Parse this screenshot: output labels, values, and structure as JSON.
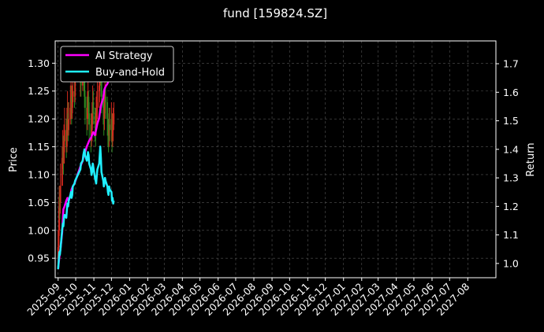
{
  "chart_data": {
    "type": "line",
    "title": "fund [159824.SZ]",
    "ylabel_left": "Price",
    "ylabel_right": "Return",
    "legend_position": "top-left",
    "grid": true,
    "background": "#000000",
    "candle_up_color": "#d42a1e",
    "candle_down_color": "#2e8b20",
    "x_ticks": [
      "2025-09",
      "2025-10",
      "2025-11",
      "2025-12",
      "2026-01",
      "2026-02",
      "2026-03",
      "2026-04",
      "2026-05",
      "2026-06",
      "2026-07",
      "2026-08",
      "2026-09",
      "2026-10",
      "2026-11",
      "2026-12",
      "2027-01",
      "2027-02",
      "2027-03",
      "2027-04",
      "2027-05",
      "2027-06",
      "2027-07",
      "2027-08"
    ],
    "xlim": [
      "2025-08-27",
      "2027-09-18"
    ],
    "y_left_ticks": [
      "0.95",
      "1.00",
      "1.05",
      "1.10",
      "1.15",
      "1.20",
      "1.25",
      "1.30"
    ],
    "y_left_lim": [
      0.915,
      1.34
    ],
    "y_right_ticks": [
      "1.0",
      "1.1",
      "1.2",
      "1.3",
      "1.4",
      "1.5",
      "1.6",
      "1.7"
    ],
    "y_right_lim": [
      0.95,
      1.78
    ],
    "series": [
      {
        "name": "AI Strategy",
        "color": "#ff00ff",
        "axis": "right",
        "x": [
          "2025-09-01",
          "2025-09-03",
          "2025-09-05",
          "2025-09-08",
          "2025-09-10",
          "2025-09-12",
          "2025-09-15",
          "2025-09-17",
          "2025-09-19",
          "2025-09-22",
          "2025-09-24",
          "2025-09-26",
          "2025-09-29",
          "2025-10-09",
          "2025-10-13",
          "2025-10-15",
          "2025-10-17",
          "2025-10-20",
          "2025-10-22",
          "2025-10-24",
          "2025-10-27",
          "2025-10-29",
          "2025-10-31",
          "2025-11-03",
          "2025-11-05",
          "2025-11-07",
          "2025-11-10",
          "2025-11-12",
          "2025-11-14",
          "2025-11-17",
          "2025-11-19",
          "2025-11-21",
          "2025-11-24",
          "2025-11-26",
          "2025-11-28",
          "2025-12-01",
          "2025-12-03"
        ],
        "values": [
          0.98,
          1.02,
          1.05,
          1.11,
          1.19,
          1.2,
          1.22,
          1.23,
          1.22,
          1.24,
          1.26,
          1.27,
          1.28,
          1.34,
          1.36,
          1.38,
          1.39,
          1.41,
          1.42,
          1.43,
          1.44,
          1.45,
          1.46,
          1.45,
          1.47,
          1.49,
          1.51,
          1.54,
          1.56,
          1.58,
          1.61,
          1.62,
          1.63,
          1.64,
          1.65,
          1.66,
          1.67
        ]
      },
      {
        "name": "Buy-and-Hold",
        "color": "#1ff0ff",
        "axis": "right",
        "x": [
          "2025-09-01",
          "2025-09-02",
          "2025-09-03",
          "2025-09-04",
          "2025-09-05",
          "2025-09-08",
          "2025-09-09",
          "2025-09-10",
          "2025-09-11",
          "2025-09-12",
          "2025-09-15",
          "2025-09-16",
          "2025-09-17",
          "2025-09-18",
          "2025-09-19",
          "2025-09-22",
          "2025-09-23",
          "2025-09-24",
          "2025-09-25",
          "2025-09-26",
          "2025-09-29",
          "2025-09-30",
          "2025-10-09",
          "2025-10-10",
          "2025-10-13",
          "2025-10-14",
          "2025-10-15",
          "2025-10-16",
          "2025-10-17",
          "2025-10-20",
          "2025-10-21",
          "2025-10-22",
          "2025-10-23",
          "2025-10-24",
          "2025-10-27",
          "2025-10-28",
          "2025-10-29",
          "2025-10-30",
          "2025-10-31",
          "2025-11-03",
          "2025-11-04",
          "2025-11-05",
          "2025-11-06",
          "2025-11-07",
          "2025-11-10",
          "2025-11-11",
          "2025-11-12",
          "2025-11-13",
          "2025-11-14",
          "2025-11-17",
          "2025-11-18",
          "2025-11-19",
          "2025-11-20",
          "2025-11-21",
          "2025-11-24",
          "2025-11-25",
          "2025-11-26",
          "2025-11-27",
          "2025-11-28",
          "2025-12-01",
          "2025-12-02",
          "2025-12-03",
          "2025-12-04",
          "2025-12-05"
        ],
        "values": [
          0.98,
          1.01,
          1.04,
          1.03,
          1.05,
          1.12,
          1.14,
          1.13,
          1.16,
          1.17,
          1.16,
          1.19,
          1.21,
          1.2,
          1.22,
          1.24,
          1.25,
          1.23,
          1.24,
          1.27,
          1.28,
          1.29,
          1.33,
          1.35,
          1.36,
          1.38,
          1.39,
          1.4,
          1.38,
          1.36,
          1.37,
          1.39,
          1.38,
          1.35,
          1.33,
          1.31,
          1.32,
          1.35,
          1.34,
          1.3,
          1.29,
          1.28,
          1.31,
          1.33,
          1.35,
          1.38,
          1.41,
          1.37,
          1.32,
          1.29,
          1.27,
          1.28,
          1.3,
          1.29,
          1.27,
          1.25,
          1.24,
          1.27,
          1.26,
          1.25,
          1.22,
          1.23,
          1.21,
          1.22
        ]
      },
      {
        "name": "Price",
        "type": "candlestick",
        "axis": "left",
        "x": [
          "2025-09-01",
          "2025-09-02",
          "2025-09-03",
          "2025-09-04",
          "2025-09-05",
          "2025-09-08",
          "2025-09-09",
          "2025-09-10",
          "2025-09-11",
          "2025-09-12",
          "2025-09-15",
          "2025-09-16",
          "2025-09-17",
          "2025-09-18",
          "2025-09-19",
          "2025-09-22",
          "2025-09-23",
          "2025-09-24",
          "2025-09-25",
          "2025-09-26",
          "2025-09-29",
          "2025-09-30",
          "2025-10-09",
          "2025-10-10",
          "2025-10-13",
          "2025-10-14",
          "2025-10-15",
          "2025-10-16",
          "2025-10-17",
          "2025-10-20",
          "2025-10-21",
          "2025-10-22",
          "2025-10-23",
          "2025-10-24",
          "2025-10-27",
          "2025-10-28",
          "2025-10-29",
          "2025-10-30",
          "2025-10-31",
          "2025-11-03",
          "2025-11-04",
          "2025-11-05",
          "2025-11-06",
          "2025-11-07",
          "2025-11-10",
          "2025-11-11",
          "2025-11-12",
          "2025-11-13",
          "2025-11-14",
          "2025-11-17",
          "2025-11-18",
          "2025-11-19",
          "2025-11-20",
          "2025-11-21",
          "2025-11-24",
          "2025-11-25",
          "2025-11-26",
          "2025-11-27",
          "2025-11-28",
          "2025-12-01",
          "2025-12-02",
          "2025-12-03",
          "2025-12-04",
          "2025-12-05"
        ],
        "close": [
          0.97,
          1.0,
          1.06,
          1.05,
          1.08,
          1.13,
          1.15,
          1.12,
          1.16,
          1.18,
          1.15,
          1.19,
          1.21,
          1.18,
          1.2,
          1.22,
          1.24,
          1.21,
          1.23,
          1.25,
          1.24,
          1.27,
          1.28,
          1.26,
          1.29,
          1.3,
          1.27,
          1.24,
          1.22,
          1.2,
          1.22,
          1.24,
          1.21,
          1.19,
          1.17,
          1.18,
          1.2,
          1.23,
          1.21,
          1.19,
          1.18,
          1.21,
          1.22,
          1.23,
          1.26,
          1.28,
          1.29,
          1.27,
          1.24,
          1.22,
          1.2,
          1.22,
          1.24,
          1.23,
          1.2,
          1.18,
          1.17,
          1.19,
          1.18,
          1.2,
          1.17,
          1.18,
          1.19,
          1.21
        ],
        "high": [
          1.0,
          1.04,
          1.08,
          1.08,
          1.12,
          1.15,
          1.18,
          1.17,
          1.19,
          1.22,
          1.2,
          1.22,
          1.25,
          1.23,
          1.23,
          1.26,
          1.28,
          1.26,
          1.26,
          1.28,
          1.28,
          1.3,
          1.31,
          1.3,
          1.32,
          1.33,
          1.31,
          1.28,
          1.25,
          1.24,
          1.25,
          1.27,
          1.25,
          1.23,
          1.21,
          1.21,
          1.23,
          1.26,
          1.25,
          1.22,
          1.22,
          1.24,
          1.25,
          1.27,
          1.29,
          1.31,
          1.32,
          1.31,
          1.28,
          1.25,
          1.24,
          1.25,
          1.27,
          1.26,
          1.24,
          1.21,
          1.2,
          1.22,
          1.22,
          1.23,
          1.21,
          1.21,
          1.22,
          1.23
        ],
        "low": [
          0.94,
          0.96,
          0.99,
          1.02,
          1.03,
          1.08,
          1.11,
          1.1,
          1.12,
          1.14,
          1.13,
          1.14,
          1.17,
          1.16,
          1.17,
          1.19,
          1.2,
          1.19,
          1.2,
          1.22,
          1.22,
          1.23,
          1.24,
          1.24,
          1.25,
          1.27,
          1.25,
          1.22,
          1.19,
          1.17,
          1.18,
          1.2,
          1.19,
          1.16,
          1.14,
          1.15,
          1.16,
          1.19,
          1.19,
          1.16,
          1.15,
          1.17,
          1.19,
          1.2,
          1.22,
          1.25,
          1.26,
          1.24,
          1.21,
          1.19,
          1.17,
          1.18,
          1.21,
          1.2,
          1.17,
          1.15,
          1.14,
          1.15,
          1.16,
          1.16,
          1.14,
          1.15,
          1.16,
          1.18
        ]
      }
    ]
  }
}
